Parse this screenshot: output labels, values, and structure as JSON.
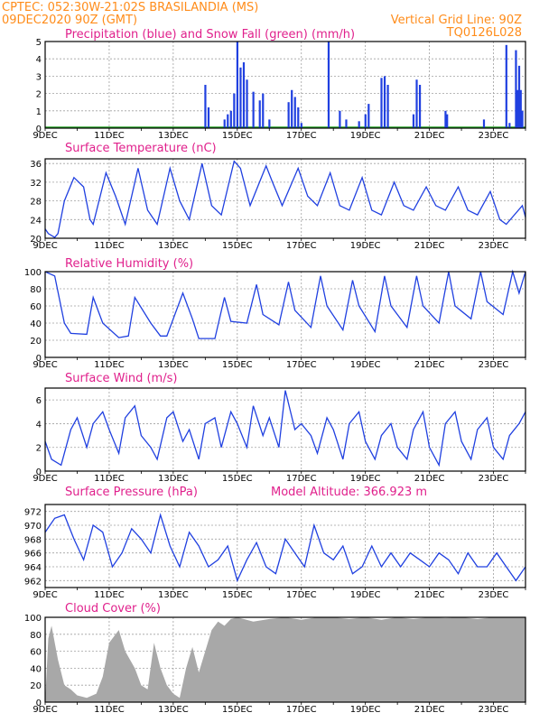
{
  "header": {
    "line1_left": "CPTEC:   052:30W-21:02S   BRASILANDIA (MS)",
    "line2_left": "09DEC2020 90Z (GMT)",
    "line1_right": "Vertical Grid Line: 90Z",
    "line2_right": "TQ0126L028"
  },
  "colors": {
    "header": "#ff8c1a",
    "title": "#e0208c",
    "line": "#2040e0",
    "snow": "#20a020",
    "cloud": "#a8a8a8",
    "grid": "#a0a0a0"
  },
  "x_tick_labels": [
    "9DEC",
    "11DEC",
    "13DEC",
    "15DEC",
    "17DEC",
    "19DEC",
    "21DEC",
    "23DEC"
  ],
  "x_range_days": [
    9,
    24
  ],
  "chart_data": [
    {
      "type": "bar",
      "title": "Precipitation (blue) and Snow Fall (green) (mm/h)",
      "ylim": [
        0,
        5
      ],
      "yticks": [
        0,
        1,
        2,
        3,
        4,
        5
      ],
      "bars_x": [
        14.0,
        14.1,
        14.6,
        14.7,
        14.8,
        14.9,
        15.0,
        15.1,
        15.2,
        15.3,
        15.5,
        15.7,
        15.8,
        16.0,
        16.6,
        16.7,
        16.8,
        16.9,
        17.0,
        17.85,
        18.2,
        18.4,
        18.8,
        19.0,
        19.1,
        19.5,
        19.6,
        19.7,
        20.5,
        20.6,
        20.7,
        21.5,
        21.55,
        22.7,
        23.4,
        23.5,
        23.7,
        23.75,
        23.8,
        23.85,
        23.9
      ],
      "bars_values": [
        2.5,
        1.2,
        0.5,
        0.8,
        1.0,
        2.0,
        5.0,
        3.5,
        3.8,
        2.8,
        2.1,
        1.6,
        2.0,
        0.5,
        1.5,
        2.2,
        1.8,
        1.2,
        0.3,
        5.0,
        1.0,
        0.5,
        0.4,
        0.8,
        1.4,
        2.9,
        3.0,
        2.5,
        0.8,
        2.8,
        2.5,
        1.0,
        0.8,
        0.5,
        4.8,
        0.3,
        4.5,
        2.2,
        3.6,
        2.2,
        1.0
      ],
      "snow_values": "zero"
    },
    {
      "type": "line",
      "title": "Surface Temperature (nC)",
      "ylim": [
        20,
        37
      ],
      "yticks": [
        20,
        24,
        28,
        32,
        36
      ],
      "x": [
        9.0,
        9.1,
        9.3,
        9.4,
        9.6,
        9.9,
        10.2,
        10.4,
        10.5,
        10.9,
        11.2,
        11.5,
        11.9,
        12.2,
        12.5,
        12.9,
        13.2,
        13.5,
        13.9,
        14.2,
        14.5,
        14.9,
        15.1,
        15.4,
        15.9,
        16.1,
        16.4,
        16.9,
        17.2,
        17.5,
        17.9,
        18.2,
        18.5,
        18.9,
        19.2,
        19.5,
        19.9,
        20.2,
        20.5,
        20.9,
        21.2,
        21.5,
        21.9,
        22.2,
        22.5,
        22.9,
        23.2,
        23.4,
        23.9,
        24.0
      ],
      "values": [
        22,
        21,
        20.2,
        21,
        28,
        33,
        31,
        24,
        23,
        34,
        29,
        23,
        35,
        26,
        23,
        35,
        28,
        24,
        36,
        27,
        25,
        36.5,
        35,
        27,
        35.5,
        32,
        27,
        35,
        29,
        27,
        34,
        27,
        26,
        33,
        26,
        25,
        32,
        27,
        26,
        31,
        27,
        26,
        31,
        26,
        25,
        30,
        24,
        23,
        27,
        24.5
      ]
    },
    {
      "type": "line",
      "title": "Relative Humidity (%)",
      "ylim": [
        0,
        100
      ],
      "yticks": [
        0,
        20,
        40,
        60,
        80,
        100
      ],
      "x": [
        9.0,
        9.3,
        9.6,
        9.8,
        10.3,
        10.5,
        10.8,
        11.3,
        11.6,
        11.8,
        12.3,
        12.6,
        12.8,
        13.3,
        13.6,
        13.8,
        14.3,
        14.6,
        14.8,
        15.3,
        15.6,
        15.8,
        16.3,
        16.6,
        16.8,
        17.3,
        17.6,
        17.8,
        18.3,
        18.6,
        18.8,
        19.3,
        19.6,
        19.8,
        20.3,
        20.6,
        20.8,
        21.3,
        21.6,
        21.8,
        22.3,
        22.6,
        22.8,
        23.3,
        23.6,
        23.8,
        24.0
      ],
      "values": [
        100,
        95,
        40,
        28,
        27,
        70,
        40,
        23,
        25,
        70,
        40,
        25,
        25,
        75,
        45,
        22,
        22,
        70,
        42,
        40,
        85,
        50,
        38,
        88,
        55,
        35,
        95,
        60,
        32,
        90,
        60,
        30,
        95,
        60,
        35,
        95,
        60,
        40,
        100,
        60,
        45,
        100,
        65,
        50,
        100,
        75,
        100
      ]
    },
    {
      "type": "line",
      "title": "Surface Wind (m/s)",
      "ylim": [
        0,
        7
      ],
      "yticks": [
        0,
        2,
        4,
        6
      ],
      "x": [
        9.0,
        9.2,
        9.5,
        9.8,
        10.0,
        10.3,
        10.5,
        10.8,
        11.0,
        11.3,
        11.5,
        11.8,
        12.0,
        12.3,
        12.5,
        12.8,
        13.0,
        13.3,
        13.5,
        13.8,
        14.0,
        14.3,
        14.5,
        14.8,
        15.0,
        15.3,
        15.5,
        15.8,
        16.0,
        16.3,
        16.5,
        16.8,
        17.0,
        17.3,
        17.5,
        17.8,
        18.0,
        18.3,
        18.5,
        18.8,
        19.0,
        19.3,
        19.5,
        19.8,
        20.0,
        20.3,
        20.5,
        20.8,
        21.0,
        21.3,
        21.5,
        21.8,
        22.0,
        22.3,
        22.5,
        22.8,
        23.0,
        23.3,
        23.5,
        23.8,
        24.0
      ],
      "values": [
        2.5,
        1.0,
        0.5,
        3.5,
        4.5,
        2.0,
        4.0,
        5.0,
        3.5,
        1.5,
        4.5,
        5.5,
        3.0,
        2.0,
        1.0,
        4.5,
        5.0,
        2.5,
        3.5,
        1.0,
        4.0,
        4.5,
        2.0,
        5.0,
        4.0,
        2.0,
        5.5,
        3.0,
        4.5,
        2.0,
        6.8,
        3.5,
        4.0,
        3.0,
        1.5,
        4.5,
        3.5,
        1.0,
        4.0,
        5.0,
        2.5,
        1.0,
        3.0,
        4.0,
        2.0,
        1.0,
        3.5,
        5.0,
        2.0,
        0.5,
        4.0,
        5.0,
        2.5,
        1.0,
        3.5,
        4.5,
        2.0,
        1.0,
        3.0,
        4.0,
        5.0
      ]
    },
    {
      "type": "line",
      "title": "Surface Pressure (hPa)",
      "annotation": "Model Altitude: 366.923  m",
      "ylim": [
        961,
        973
      ],
      "yticks": [
        962,
        964,
        966,
        968,
        970,
        972
      ],
      "x": [
        9.0,
        9.3,
        9.6,
        9.9,
        10.2,
        10.5,
        10.8,
        11.1,
        11.4,
        11.7,
        12.0,
        12.3,
        12.6,
        12.9,
        13.2,
        13.5,
        13.8,
        14.1,
        14.4,
        14.7,
        15.0,
        15.3,
        15.6,
        15.9,
        16.2,
        16.5,
        16.8,
        17.1,
        17.4,
        17.7,
        18.0,
        18.3,
        18.6,
        18.9,
        19.2,
        19.5,
        19.8,
        20.1,
        20.4,
        20.7,
        21.0,
        21.3,
        21.6,
        21.9,
        22.2,
        22.5,
        22.8,
        23.1,
        23.4,
        23.7,
        24.0
      ],
      "values": [
        969,
        971,
        971.5,
        968,
        965,
        970,
        969,
        964,
        966,
        969.5,
        968,
        966,
        971.5,
        967,
        964,
        969,
        967,
        964,
        965,
        967,
        962,
        965,
        967.5,
        964,
        963,
        968,
        966,
        964,
        970,
        966,
        965,
        967,
        963,
        964,
        967,
        964,
        966,
        964,
        966,
        965,
        964,
        966,
        965,
        963,
        966,
        964,
        964,
        966,
        964,
        962,
        964
      ]
    },
    {
      "type": "area",
      "title": "Cloud Cover (%)",
      "ylim": [
        0,
        100
      ],
      "yticks": [
        0,
        20,
        40,
        60,
        80,
        100
      ],
      "x": [
        9.0,
        9.1,
        9.2,
        9.4,
        9.6,
        9.8,
        10.0,
        10.3,
        10.6,
        10.8,
        11.0,
        11.3,
        11.5,
        11.8,
        12.0,
        12.2,
        12.4,
        12.6,
        12.8,
        13.0,
        13.2,
        13.4,
        13.6,
        13.8,
        14.0,
        14.2,
        14.4,
        14.6,
        14.8,
        15.0,
        15.5,
        16.0,
        16.5,
        17.0,
        17.5,
        18.0,
        18.5,
        19.0,
        19.5,
        20.0,
        20.5,
        21.0,
        21.5,
        22.0,
        22.5,
        23.0,
        23.5,
        24.0
      ],
      "values": [
        0,
        75,
        90,
        50,
        20,
        15,
        8,
        5,
        10,
        30,
        70,
        85,
        60,
        40,
        20,
        15,
        70,
        40,
        20,
        10,
        5,
        40,
        65,
        35,
        60,
        85,
        95,
        90,
        98,
        100,
        95,
        98,
        100,
        97,
        100,
        100,
        98,
        100,
        97,
        100,
        98,
        100,
        99,
        100,
        98,
        100,
        100,
        100
      ]
    }
  ]
}
